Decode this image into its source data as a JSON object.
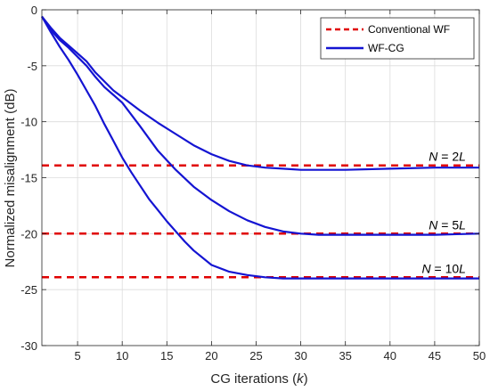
{
  "chart_data": {
    "type": "line",
    "xlabel": "CG iterations (k)",
    "xlabel_prefix": "CG iterations (",
    "xlabel_var": "k",
    "xlabel_suffix": ")",
    "ylabel": "Normalized misalignment (dB)",
    "xlim": [
      1,
      50
    ],
    "ylim": [
      -30,
      0
    ],
    "xticks": [
      5,
      10,
      15,
      20,
      25,
      30,
      35,
      40,
      45,
      50
    ],
    "yticks": [
      0,
      -5,
      -10,
      -15,
      -20,
      -25,
      -30
    ],
    "grid": true,
    "legend_position": "top-right",
    "colors": {
      "conventional": "#e00000",
      "wfcg": "#1414d2"
    },
    "series": [
      {
        "name": "Conventional WF",
        "style": "dashed",
        "color": "#e00000",
        "lines": [
          {
            "x": [
              1,
              50
            ],
            "y": [
              -13.9,
              -13.9
            ]
          },
          {
            "x": [
              1,
              50
            ],
            "y": [
              -20.0,
              -20.0
            ]
          },
          {
            "x": [
              1,
              50
            ],
            "y": [
              -23.9,
              -23.9
            ]
          }
        ]
      },
      {
        "name": "WF-CG",
        "style": "solid",
        "color": "#1414d2",
        "lines": [
          {
            "x": [
              1,
              2,
              3,
              4,
              5,
              6,
              7,
              8,
              9,
              10,
              12,
              14,
              16,
              18,
              20,
              22,
              24,
              26,
              28,
              30,
              32,
              35,
              40,
              45,
              50
            ],
            "y": [
              -0.6,
              -1.6,
              -2.5,
              -3.2,
              -3.9,
              -4.6,
              -5.6,
              -6.4,
              -7.2,
              -7.8,
              -9.0,
              -10.1,
              -11.1,
              -12.1,
              -12.9,
              -13.5,
              -13.9,
              -14.1,
              -14.2,
              -14.3,
              -14.3,
              -14.3,
              -14.2,
              -14.1,
              -14.1
            ]
          },
          {
            "x": [
              1,
              2,
              3,
              4,
              5,
              6,
              7,
              8,
              9,
              10,
              12,
              14,
              16,
              18,
              20,
              22,
              24,
              26,
              28,
              30,
              32,
              35,
              40,
              45,
              50
            ],
            "y": [
              -0.6,
              -1.8,
              -2.7,
              -3.4,
              -4.2,
              -5.0,
              -6.0,
              -6.9,
              -7.6,
              -8.3,
              -10.4,
              -12.6,
              -14.3,
              -15.8,
              -17.0,
              -18.0,
              -18.8,
              -19.4,
              -19.8,
              -20.0,
              -20.1,
              -20.1,
              -20.1,
              -20.1,
              -20.0
            ]
          },
          {
            "x": [
              1,
              2,
              3,
              4,
              5,
              6,
              7,
              8,
              9,
              10,
              11,
              12,
              13,
              14,
              15,
              16,
              17,
              18,
              20,
              22,
              24,
              26,
              28,
              30,
              35,
              40,
              45,
              50
            ],
            "y": [
              -0.6,
              -2.0,
              -3.3,
              -4.5,
              -5.8,
              -7.2,
              -8.6,
              -10.2,
              -11.7,
              -13.2,
              -14.5,
              -15.7,
              -16.9,
              -17.9,
              -18.9,
              -19.8,
              -20.7,
              -21.5,
              -22.8,
              -23.4,
              -23.7,
              -23.9,
              -24.0,
              -24.0,
              -24.0,
              -24.0,
              -24.0,
              -24.0
            ]
          }
        ]
      }
    ],
    "annotations": [
      {
        "prefix": "N",
        "mid": " = 2",
        "suffix": "L",
        "x": 48.5,
        "y": -13.9
      },
      {
        "prefix": "N",
        "mid": " = 5",
        "suffix": "L",
        "x": 48.5,
        "y": -20.0
      },
      {
        "prefix": "N",
        "mid": " = 10",
        "suffix": "L",
        "x": 48.5,
        "y": -23.9
      }
    ]
  }
}
